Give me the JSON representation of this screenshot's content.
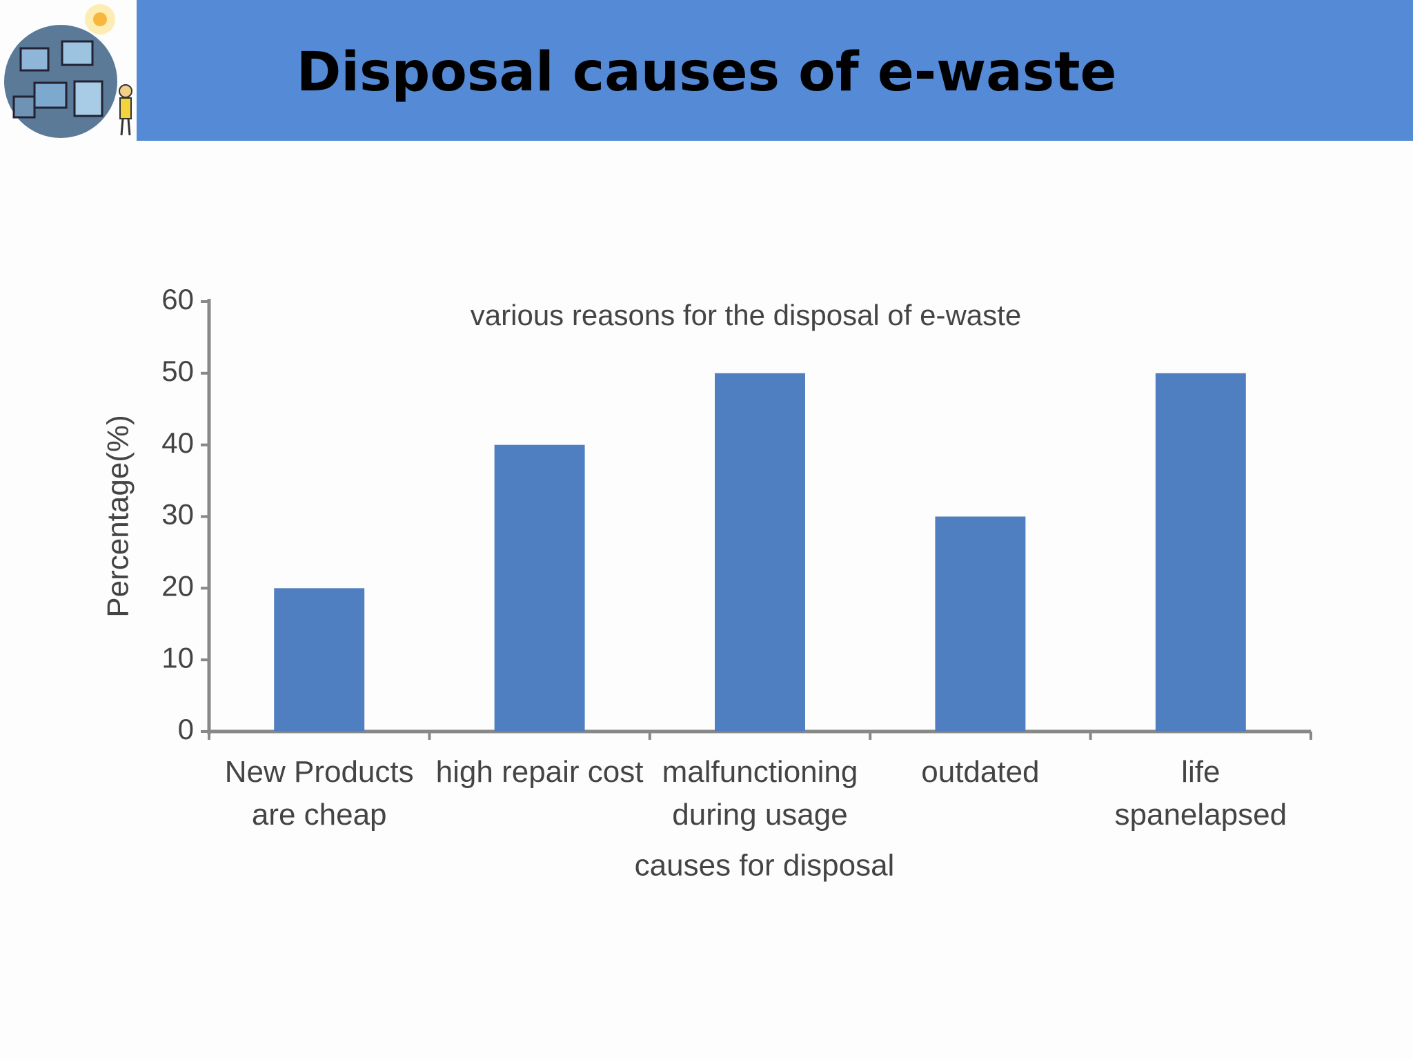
{
  "header": {
    "title": "Disposal causes of e-waste"
  },
  "chart_data": {
    "type": "bar",
    "title": "various reasons for the disposal of e-waste",
    "x_label": "causes for disposal",
    "y_label": "Percentage(%)",
    "categories": [
      "New Products are cheap",
      "high repair cost",
      "malfunctioning during usage",
      "outdated",
      "life spanelapsed"
    ],
    "values": [
      20,
      40,
      50,
      30,
      50
    ],
    "color": "#4f7fc0",
    "ylim": [
      0,
      60
    ],
    "yticks": [
      0,
      10,
      20,
      30,
      40,
      50,
      60
    ],
    "grid": false
  }
}
